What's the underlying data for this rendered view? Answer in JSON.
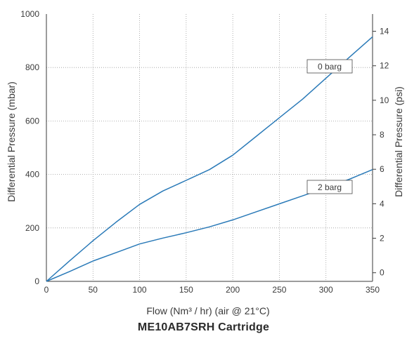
{
  "chart_data": {
    "type": "line",
    "title": "ME10AB7SRH Cartridge",
    "xlabel": "Flow (Nm³ / hr) (air @ 21°C)",
    "ylabel": "Differential Pressure (mbar)",
    "y2label": "Differential Pressure (psi)",
    "xlim": [
      0,
      350
    ],
    "ylim": [
      0,
      1000
    ],
    "y2lim": [
      -0.5,
      15
    ],
    "x_ticks": [
      0,
      50,
      100,
      150,
      200,
      250,
      300,
      350
    ],
    "y_ticks": [
      0,
      200,
      400,
      600,
      800,
      1000
    ],
    "y2_ticks": [
      0,
      2,
      4,
      6,
      8,
      10,
      12,
      14
    ],
    "grid": true,
    "series": [
      {
        "name": "0 barg",
        "x": [
          0,
          25,
          50,
          75,
          100,
          125,
          150,
          175,
          200,
          225,
          250,
          275,
          300,
          325,
          350
        ],
        "y": [
          0,
          77,
          152,
          222,
          288,
          338,
          378,
          418,
          472,
          542,
          612,
          682,
          760,
          838,
          915
        ]
      },
      {
        "name": "2 barg",
        "x": [
          0,
          25,
          50,
          75,
          100,
          125,
          150,
          175,
          200,
          225,
          250,
          275,
          300,
          325,
          350
        ],
        "y": [
          0,
          37,
          76,
          108,
          140,
          162,
          182,
          204,
          230,
          260,
          290,
          320,
          350,
          382,
          418
        ]
      }
    ],
    "colors": {
      "line": "#2a7ab8",
      "grid": "#9a9a9a",
      "axis": "#3a3a3a"
    }
  }
}
